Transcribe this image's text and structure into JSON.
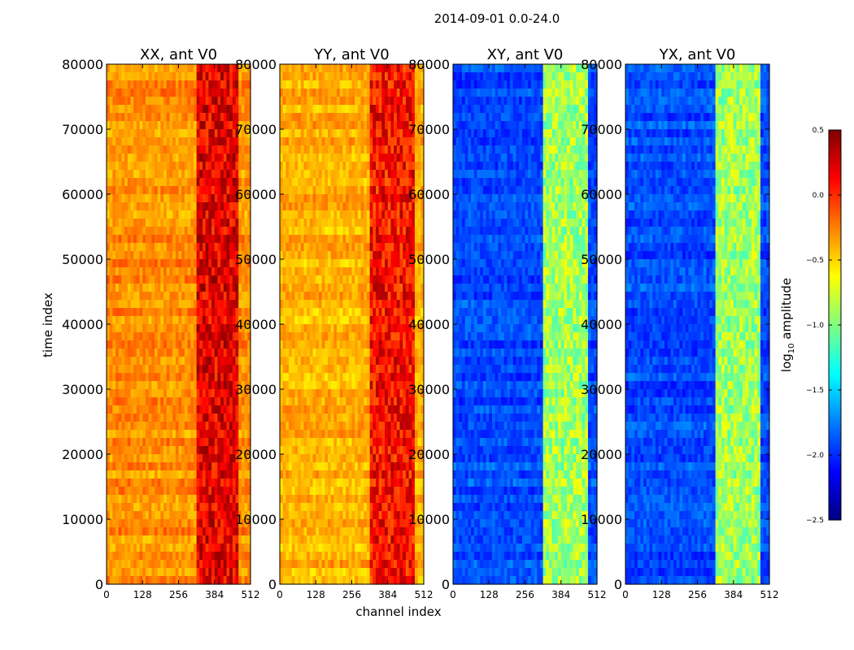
{
  "figure_title": "2014-09-01 0.0-24.0",
  "ylabel": "time index",
  "xlabel": "channel index",
  "colorbar": {
    "label_prefix": "log",
    "label_sub": "10",
    "label_suffix": " amplitude",
    "range": [
      -2.5,
      0.5
    ],
    "ticks": [
      "0.5",
      "0.0",
      "−0.5",
      "−1.0",
      "−1.5",
      "−2.0",
      "−2.5"
    ],
    "colormap": [
      "#00007f",
      "#0000ff",
      "#007fff",
      "#00ffff",
      "#7fff7f",
      "#ffff00",
      "#ff7f00",
      "#ff0000",
      "#7f0000"
    ]
  },
  "chart_data": [
    {
      "type": "heatmap",
      "title": "XX, ant V0",
      "xlim": [
        0,
        512
      ],
      "ylim": [
        0,
        80000
      ],
      "x_ticks": [
        "0",
        "128",
        "256",
        "384",
        "512"
      ],
      "y_ticks": [
        "0",
        "10000",
        "20000",
        "30000",
        "40000",
        "50000",
        "60000",
        "70000",
        "80000"
      ],
      "base_level": -0.3,
      "band_start_channel": 320,
      "band_end_channel": 470,
      "band_level": 0.2
    },
    {
      "type": "heatmap",
      "title": "YY, ant V0",
      "xlim": [
        0,
        512
      ],
      "ylim": [
        0,
        80000
      ],
      "x_ticks": [
        "0",
        "128",
        "256",
        "384",
        "512"
      ],
      "y_ticks": [
        "0",
        "10000",
        "20000",
        "30000",
        "40000",
        "50000",
        "60000",
        "70000",
        "80000"
      ],
      "base_level": -0.4,
      "band_start_channel": 320,
      "band_end_channel": 480,
      "band_level": 0.1
    },
    {
      "type": "heatmap",
      "title": "XY, ant V0",
      "xlim": [
        0,
        512
      ],
      "ylim": [
        0,
        80000
      ],
      "x_ticks": [
        "0",
        "128",
        "256",
        "384",
        "512"
      ],
      "y_ticks": [
        "0",
        "10000",
        "20000",
        "30000",
        "40000",
        "50000",
        "60000",
        "70000",
        "80000"
      ],
      "base_level": -1.9,
      "band_start_channel": 320,
      "band_end_channel": 480,
      "band_level": -0.9
    },
    {
      "type": "heatmap",
      "title": "YX, ant V0",
      "xlim": [
        0,
        512
      ],
      "ylim": [
        0,
        80000
      ],
      "x_ticks": [
        "0",
        "128",
        "256",
        "384",
        "512"
      ],
      "y_ticks": [
        "0",
        "10000",
        "20000",
        "30000",
        "40000",
        "50000",
        "60000",
        "70000",
        "80000"
      ],
      "base_level": -1.9,
      "band_start_channel": 320,
      "band_end_channel": 480,
      "band_level": -0.9
    }
  ]
}
